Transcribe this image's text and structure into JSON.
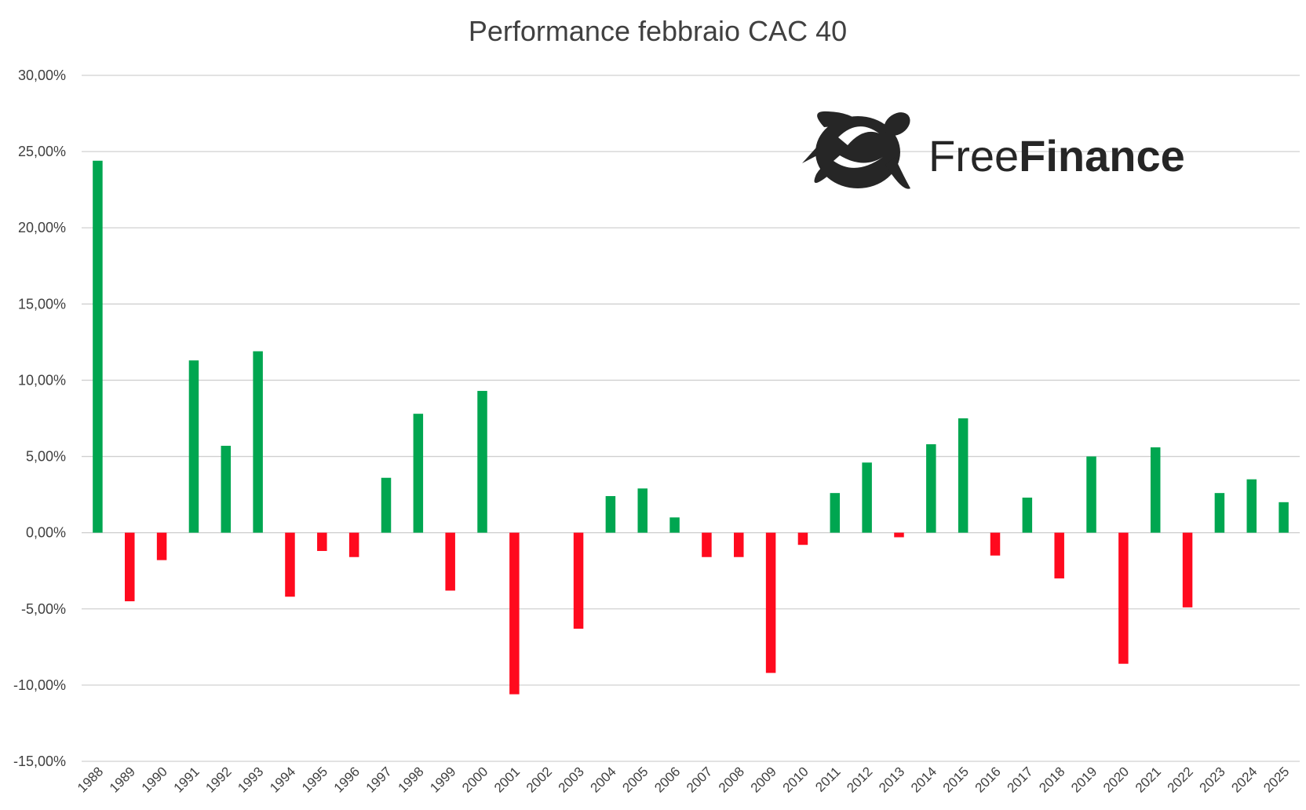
{
  "chart_data": {
    "type": "bar",
    "title": "Performance febbraio CAC 40",
    "xlabel": "",
    "ylabel": "",
    "ylim": [
      -15,
      30
    ],
    "yticks": [
      "30,00%",
      "25,00%",
      "20,00%",
      "15,00%",
      "10,00%",
      "5,00%",
      "0,00%",
      "-5,00%",
      "-10,00%",
      "-15,00%"
    ],
    "ytick_values": [
      30,
      25,
      20,
      15,
      10,
      5,
      0,
      -5,
      -10,
      -15
    ],
    "grid": true,
    "categories": [
      "1988",
      "1989",
      "1990",
      "1991",
      "1992",
      "1993",
      "1994",
      "1995",
      "1996",
      "1997",
      "1998",
      "1999",
      "2000",
      "2001",
      "2002",
      "2003",
      "2004",
      "2005",
      "2006",
      "2007",
      "2008",
      "2009",
      "2010",
      "2011",
      "2012",
      "2013",
      "2014",
      "2015",
      "2016",
      "2017",
      "2018",
      "2019",
      "2020",
      "2021",
      "2022",
      "2023",
      "2024",
      "2025"
    ],
    "values": [
      24.4,
      -4.5,
      -1.8,
      11.3,
      5.7,
      11.9,
      -4.2,
      -1.2,
      -1.6,
      3.6,
      7.8,
      -3.8,
      9.3,
      -10.6,
      0,
      -6.3,
      2.4,
      2.9,
      1.0,
      -1.6,
      -1.6,
      -9.2,
      -0.8,
      2.6,
      4.6,
      -0.3,
      5.8,
      7.5,
      -1.5,
      2.3,
      -3.0,
      5.0,
      -8.6,
      5.6,
      -4.9,
      2.6,
      3.5,
      2.0
    ],
    "colors": {
      "positive": "#00a650",
      "negative": "#ff0a1e"
    }
  },
  "logo": {
    "light": "Free",
    "bold": "Finance",
    "icon": "turtle-icon"
  }
}
